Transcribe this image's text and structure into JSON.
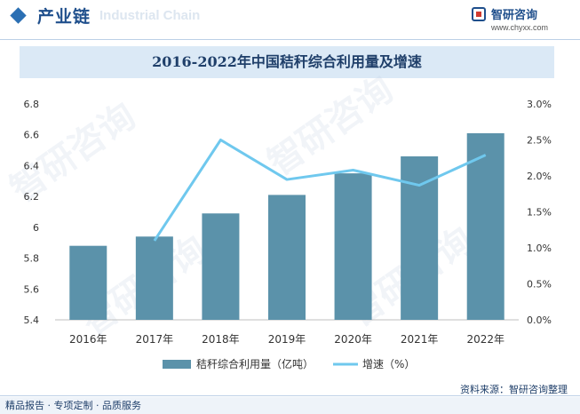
{
  "header": {
    "title": "产业链",
    "watermark_text": "Industrial Chain",
    "logo_name": "智研咨询",
    "logo_url": "www.chyxx.com"
  },
  "chart_data": {
    "type": "bar",
    "title": "2016-2022年中国秸秆综合利用量及增速",
    "categories": [
      "2016年",
      "2017年",
      "2018年",
      "2019年",
      "2020年",
      "2021年",
      "2022年"
    ],
    "series": [
      {
        "name": "秸秆综合利用量（亿吨）",
        "type": "bar",
        "axis": "left",
        "color": "#5b92aa",
        "values": [
          5.88,
          5.94,
          6.09,
          6.21,
          6.35,
          6.46,
          6.61
        ]
      },
      {
        "name": "增速（%）",
        "type": "line",
        "axis": "right",
        "color": "#6fc8ee",
        "values": [
          null,
          1.1,
          2.5,
          1.95,
          2.08,
          1.87,
          2.29
        ]
      }
    ],
    "y_left": {
      "min": 5.4,
      "max": 6.8,
      "ticks": [
        "5.4",
        "5.6",
        "5.8",
        "6",
        "6.2",
        "6.4",
        "6.6",
        "6.8"
      ]
    },
    "y_right": {
      "min": 0,
      "max": 3.0,
      "ticks": [
        "0.0%",
        "0.5%",
        "1.0%",
        "1.5%",
        "2.0%",
        "2.5%",
        "3.0%"
      ]
    },
    "legend_position": "bottom",
    "grid": false
  },
  "footer": {
    "source": "资料来源：智研咨询整理",
    "tagline": "精品报告 · 专项定制 · 品质服务"
  }
}
